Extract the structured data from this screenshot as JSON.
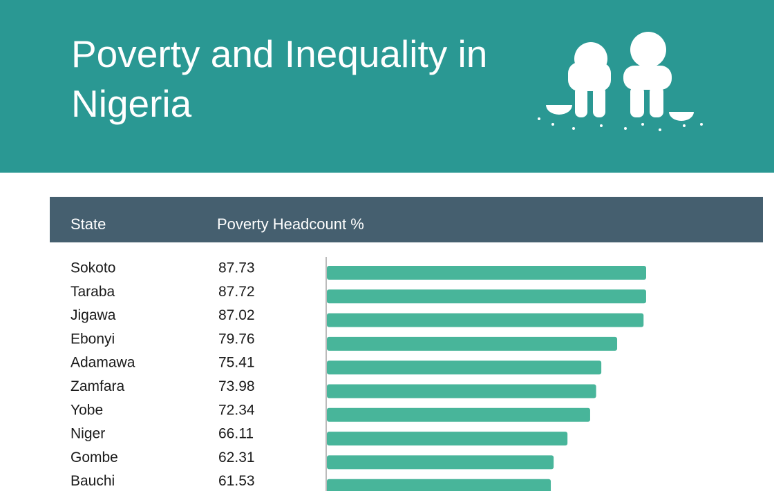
{
  "chart_data": {
    "type": "bar",
    "title": "Poverty and Inequality in Nigeria",
    "category_header": "State",
    "value_header": "Poverty Headcount %",
    "categories": [
      "Sokoto",
      "Taraba",
      "Jigawa",
      "Ebonyi",
      "Adamawa",
      "Zamfara",
      "Yobe",
      "Niger",
      "Gombe",
      "Bauchi"
    ],
    "values": [
      87.73,
      87.72,
      87.02,
      79.76,
      75.41,
      73.98,
      72.34,
      66.11,
      62.31,
      61.53
    ],
    "color": "#48b59a"
  }
}
